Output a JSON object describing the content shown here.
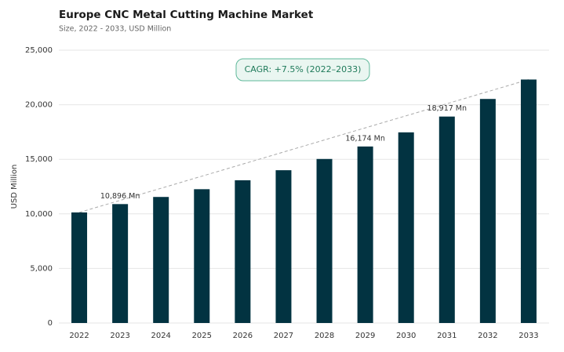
{
  "chart_data": {
    "type": "bar",
    "title": "Europe CNC Metal Cutting Machine Market",
    "subtitle": "Size, 2022 - 2033, USD Million",
    "y_label": "USD Million",
    "annotation": "CAGR: +7.5% (2022–2033)",
    "categories": [
      "2022",
      "2023",
      "2024",
      "2025",
      "2026",
      "2027",
      "2028",
      "2029",
      "2030",
      "2031",
      "2032",
      "2033"
    ],
    "values": [
      10130,
      10896,
      11550,
      12260,
      13080,
      14000,
      15030,
      16174,
      17470,
      18917,
      20530,
      22310
    ],
    "value_labels": [
      null,
      "10,896 Mn",
      null,
      null,
      null,
      null,
      null,
      "16,174 Mn",
      null,
      "18,917 Mn",
      null,
      null
    ],
    "color": "#023341",
    "ylim": [
      0,
      25000
    ],
    "yticks": [
      0,
      {
        "value": 5000,
        "label": "5,000"
      },
      {
        "value": 10000,
        "label": "10,000"
      },
      {
        "value": 15000,
        "label": "15,000"
      },
      {
        "value": 20000,
        "label": "20,000"
      },
      {
        "value": 25000,
        "label": "25,000"
      }
    ],
    "grid": true
  }
}
